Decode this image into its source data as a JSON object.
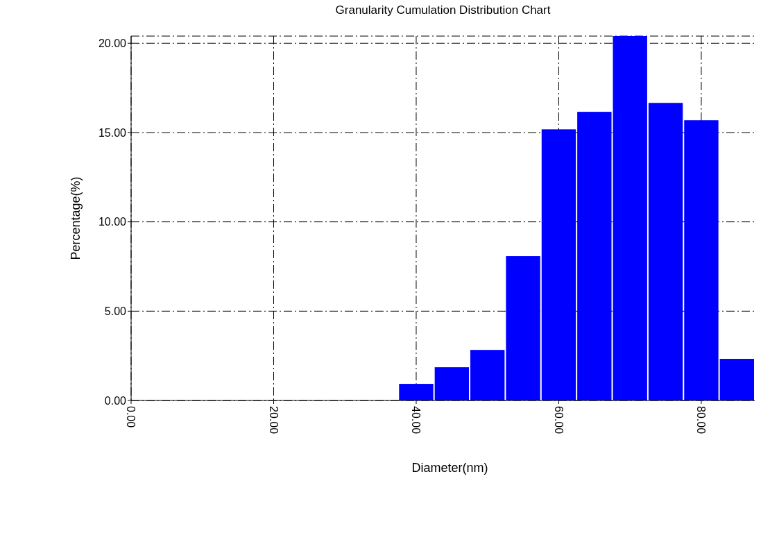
{
  "chart_data": {
    "type": "histogram",
    "title": "Granularity Cumulation Distribution  Chart",
    "xlabel": "Diameter(nm)",
    "ylabel": "Percentage(%)",
    "bins": [
      37.5,
      42.5,
      47.5,
      52.5,
      57.5,
      62.5,
      67.5,
      72.5,
      77.5,
      82.5,
      87.5
    ],
    "values": [
      0.93,
      1.86,
      2.83,
      8.08,
      15.18,
      16.16,
      20.4,
      16.66,
      15.69,
      2.33
    ],
    "color": "#0000ff",
    "xlim": [
      0,
      87.5
    ],
    "ylim": [
      0,
      20.4
    ],
    "xticks": [
      {
        "value": 0,
        "label": "0.00"
      },
      {
        "value": 20,
        "label": "20.00"
      },
      {
        "value": 40,
        "label": "40.00"
      },
      {
        "value": 60,
        "label": "60.00"
      },
      {
        "value": 80,
        "label": "80.00"
      }
    ],
    "yticks": [
      {
        "value": 0,
        "label": "0.00"
      },
      {
        "value": 5,
        "label": "5.00"
      },
      {
        "value": 10,
        "label": "10.00"
      },
      {
        "value": 15,
        "label": "15.00"
      },
      {
        "value": 20,
        "label": "20.00"
      }
    ],
    "grid": true
  }
}
